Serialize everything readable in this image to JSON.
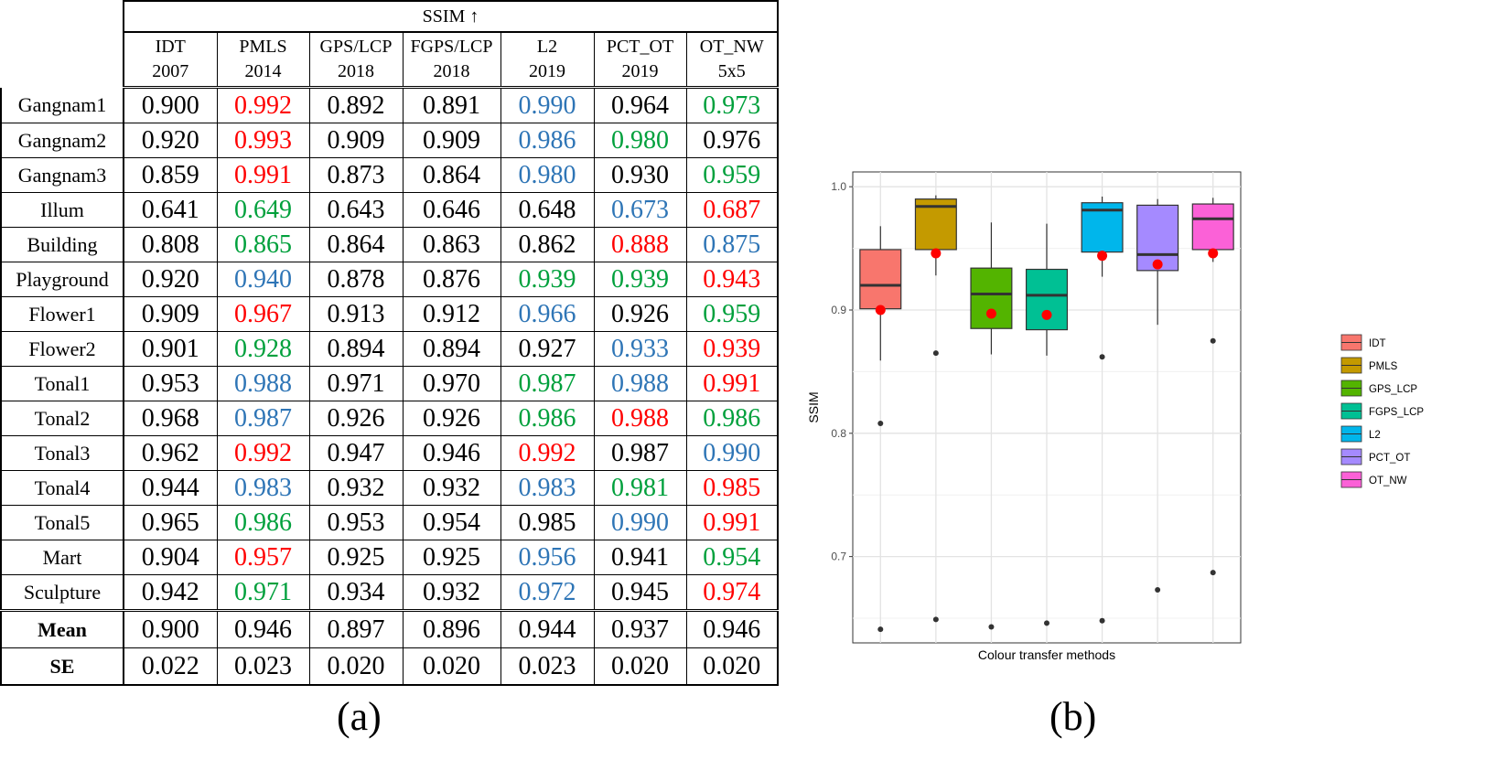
{
  "table": {
    "metric": "SSIM ↑",
    "methods": [
      {
        "name": "IDT",
        "year": "2007"
      },
      {
        "name": "PMLS",
        "year": "2014"
      },
      {
        "name": "GPS/LCP",
        "year": "2018"
      },
      {
        "name": "FGPS/LCP",
        "year": "2018"
      },
      {
        "name": "L2",
        "year": "2019"
      },
      {
        "name": "PCT_OT",
        "year": "2019"
      },
      {
        "name": "OT_NW",
        "year": "5x5"
      }
    ],
    "rows": [
      {
        "name": "Gangnam1",
        "values": [
          "0.900",
          "0.992",
          "0.892",
          "0.891",
          "0.990",
          "0.964",
          "0.973"
        ],
        "colors": [
          "black",
          "red",
          "black",
          "black",
          "blue",
          "black",
          "green"
        ]
      },
      {
        "name": "Gangnam2",
        "values": [
          "0.920",
          "0.993",
          "0.909",
          "0.909",
          "0.986",
          "0.980",
          "0.976"
        ],
        "colors": [
          "black",
          "red",
          "black",
          "black",
          "blue",
          "green",
          "black"
        ]
      },
      {
        "name": "Gangnam3",
        "values": [
          "0.859",
          "0.991",
          "0.873",
          "0.864",
          "0.980",
          "0.930",
          "0.959"
        ],
        "colors": [
          "black",
          "red",
          "black",
          "black",
          "blue",
          "black",
          "green"
        ]
      },
      {
        "name": "Illum",
        "values": [
          "0.641",
          "0.649",
          "0.643",
          "0.646",
          "0.648",
          "0.673",
          "0.687"
        ],
        "colors": [
          "black",
          "green",
          "black",
          "black",
          "black",
          "blue",
          "red"
        ]
      },
      {
        "name": "Building",
        "values": [
          "0.808",
          "0.865",
          "0.864",
          "0.863",
          "0.862",
          "0.888",
          "0.875"
        ],
        "colors": [
          "black",
          "green",
          "black",
          "black",
          "black",
          "red",
          "blue"
        ]
      },
      {
        "name": "Playground",
        "values": [
          "0.920",
          "0.940",
          "0.878",
          "0.876",
          "0.939",
          "0.939",
          "0.943"
        ],
        "colors": [
          "black",
          "blue",
          "black",
          "black",
          "green",
          "green",
          "red"
        ]
      },
      {
        "name": "Flower1",
        "values": [
          "0.909",
          "0.967",
          "0.913",
          "0.912",
          "0.966",
          "0.926",
          "0.959"
        ],
        "colors": [
          "black",
          "red",
          "black",
          "black",
          "blue",
          "black",
          "green"
        ]
      },
      {
        "name": "Flower2",
        "values": [
          "0.901",
          "0.928",
          "0.894",
          "0.894",
          "0.927",
          "0.933",
          "0.939"
        ],
        "colors": [
          "black",
          "green",
          "black",
          "black",
          "black",
          "blue",
          "red"
        ]
      },
      {
        "name": "Tonal1",
        "values": [
          "0.953",
          "0.988",
          "0.971",
          "0.970",
          "0.987",
          "0.988",
          "0.991"
        ],
        "colors": [
          "black",
          "blue",
          "black",
          "black",
          "green",
          "blue",
          "red"
        ]
      },
      {
        "name": "Tonal2",
        "values": [
          "0.968",
          "0.987",
          "0.926",
          "0.926",
          "0.986",
          "0.988",
          "0.986"
        ],
        "colors": [
          "black",
          "blue",
          "black",
          "black",
          "green",
          "red",
          "green"
        ]
      },
      {
        "name": "Tonal3",
        "values": [
          "0.962",
          "0.992",
          "0.947",
          "0.946",
          "0.992",
          "0.987",
          "0.990"
        ],
        "colors": [
          "black",
          "red",
          "black",
          "black",
          "red",
          "black",
          "blue"
        ]
      },
      {
        "name": "Tonal4",
        "values": [
          "0.944",
          "0.983",
          "0.932",
          "0.932",
          "0.983",
          "0.981",
          "0.985"
        ],
        "colors": [
          "black",
          "blue",
          "black",
          "black",
          "blue",
          "green",
          "red"
        ]
      },
      {
        "name": "Tonal5",
        "values": [
          "0.965",
          "0.986",
          "0.953",
          "0.954",
          "0.985",
          "0.990",
          "0.991"
        ],
        "colors": [
          "black",
          "green",
          "black",
          "black",
          "black",
          "blue",
          "red"
        ]
      },
      {
        "name": "Mart",
        "values": [
          "0.904",
          "0.957",
          "0.925",
          "0.925",
          "0.956",
          "0.941",
          "0.954"
        ],
        "colors": [
          "black",
          "red",
          "black",
          "black",
          "blue",
          "black",
          "green"
        ]
      },
      {
        "name": "Sculpture",
        "values": [
          "0.942",
          "0.971",
          "0.934",
          "0.932",
          "0.972",
          "0.945",
          "0.974"
        ],
        "colors": [
          "black",
          "green",
          "black",
          "black",
          "blue",
          "black",
          "red"
        ]
      }
    ],
    "summary": [
      {
        "name": "Mean",
        "values": [
          "0.900",
          "0.946",
          "0.897",
          "0.896",
          "0.944",
          "0.937",
          "0.946"
        ]
      },
      {
        "name": "SE",
        "values": [
          "0.022",
          "0.023",
          "0.020",
          "0.020",
          "0.023",
          "0.020",
          "0.020"
        ]
      }
    ],
    "text_colors": {
      "red": "#ff0000",
      "green": "#00a03c",
      "blue": "#2e75b6",
      "black": "#000000"
    }
  },
  "labels": {
    "panel_a": "(a)",
    "panel_b": "(b)"
  },
  "chart_data": {
    "type": "box",
    "xlabel": "Colour transfer methods",
    "ylabel": "SSIM",
    "ylim": [
      0.63,
      1.012
    ],
    "y_ticks": [
      "0.7",
      "0.8",
      "0.9",
      "1.0"
    ],
    "grid": true,
    "legend_position": "right",
    "mean_marker_color": "#ff0000",
    "series": [
      {
        "name": "IDT",
        "color": "#f8766d",
        "q1": 0.901,
        "median": 0.92,
        "q3": 0.949,
        "whisker_low": 0.859,
        "whisker_high": 0.968,
        "mean": 0.9,
        "outliers": [
          0.808,
          0.641
        ]
      },
      {
        "name": "PMLS",
        "color": "#c49a00",
        "q1": 0.949,
        "median": 0.984,
        "q3": 0.99,
        "whisker_low": 0.928,
        "whisker_high": 0.993,
        "mean": 0.946,
        "outliers": [
          0.865,
          0.649
        ]
      },
      {
        "name": "GPS_LCP",
        "color": "#53b400",
        "q1": 0.885,
        "median": 0.913,
        "q3": 0.934,
        "whisker_low": 0.864,
        "whisker_high": 0.971,
        "mean": 0.897,
        "outliers": [
          0.643
        ]
      },
      {
        "name": "FGPS_LCP",
        "color": "#00c094",
        "q1": 0.884,
        "median": 0.912,
        "q3": 0.933,
        "whisker_low": 0.863,
        "whisker_high": 0.97,
        "mean": 0.896,
        "outliers": [
          0.646
        ]
      },
      {
        "name": "L2",
        "color": "#00b6eb",
        "q1": 0.947,
        "median": 0.981,
        "q3": 0.987,
        "whisker_low": 0.927,
        "whisker_high": 0.992,
        "mean": 0.944,
        "outliers": [
          0.862,
          0.648
        ]
      },
      {
        "name": "PCT_OT",
        "color": "#a58aff",
        "q1": 0.932,
        "median": 0.945,
        "q3": 0.985,
        "whisker_low": 0.888,
        "whisker_high": 0.99,
        "mean": 0.937,
        "outliers": [
          0.673
        ]
      },
      {
        "name": "OT_NW",
        "color": "#fb61d7",
        "q1": 0.949,
        "median": 0.974,
        "q3": 0.986,
        "whisker_low": 0.939,
        "whisker_high": 0.991,
        "mean": 0.946,
        "outliers": [
          0.875,
          0.687
        ]
      }
    ]
  }
}
